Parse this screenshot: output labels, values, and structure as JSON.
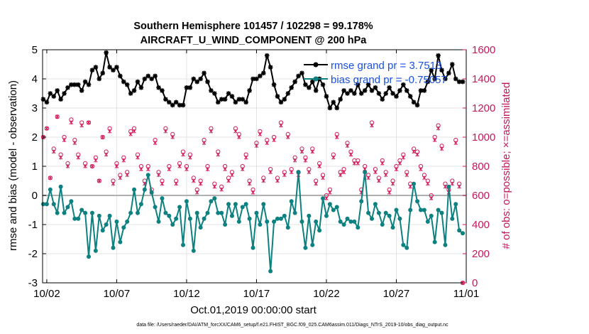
{
  "chart_data": {
    "type": "line",
    "title_line1": "Southern Hemisphere 101457 / 102298 = 99.178%",
    "title_line2": "AIRCRAFT_U_WIND_COMPONENT @ 200 hPa",
    "xlabel": "Oct.01,2019 00:00:00 start",
    "ylabel_left": "rmse and bias (model - observation)",
    "ylabel_right": "# of obs: o=possible; ×=assimilated",
    "footer": "data file: /Users/raeder/DAI/ATM_forcXX/CAM6_setup/f.e21.FHIST_BGC.f09_025.CAM6assim.011/Diags_NTrS_2019-10/obs_diag_output.nc",
    "xlim": [
      0.7,
      31.0
    ],
    "ylim_left": [
      -3,
      5
    ],
    "ylim_right": [
      0,
      1600
    ],
    "x_ticks": [
      1,
      6,
      11,
      16,
      21,
      26,
      31
    ],
    "x_tick_labels": [
      "10/02",
      "10/07",
      "10/12",
      "10/17",
      "10/22",
      "10/27",
      "11/01"
    ],
    "y_left_ticks": [
      "-3",
      "-2",
      "-1",
      "0",
      "1",
      "2",
      "3",
      "4",
      "5"
    ],
    "y_right_ticks": [
      "0",
      "200",
      "400",
      "600",
      "800",
      "1000",
      "1200",
      "1400",
      "1600"
    ],
    "legend": [
      {
        "label": "rmse grand pr = 3.7513",
        "color": "#000000"
      },
      {
        "label": "bias grand pr = -0.75057",
        "color": "#0d8080"
      }
    ],
    "colors": {
      "rmse": "#000000",
      "bias": "#0d8080",
      "obs": "#d11c5b",
      "legend_text": "#1a52e0",
      "right_axis": "#c2185b",
      "zero_line": "#b0b0b0"
    },
    "x": [
      0.75,
      1.0,
      1.25,
      1.5,
      1.75,
      2.0,
      2.25,
      2.5,
      2.75,
      3.0,
      3.25,
      3.5,
      3.75,
      4.0,
      4.25,
      4.5,
      4.75,
      5.0,
      5.25,
      5.5,
      5.75,
      6.0,
      6.25,
      6.5,
      6.75,
      7.0,
      7.25,
      7.5,
      7.75,
      8.0,
      8.25,
      8.5,
      8.75,
      9.0,
      9.25,
      9.5,
      9.75,
      10.0,
      10.25,
      10.5,
      10.75,
      11.0,
      11.25,
      11.5,
      11.75,
      12.0,
      12.25,
      12.5,
      12.75,
      13.0,
      13.25,
      13.5,
      13.75,
      14.0,
      14.25,
      14.5,
      14.75,
      15.0,
      15.25,
      15.5,
      15.75,
      16.0,
      16.25,
      16.5,
      16.75,
      17.0,
      17.25,
      17.5,
      17.75,
      18.0,
      18.25,
      18.5,
      18.75,
      19.0,
      19.25,
      19.5,
      19.75,
      20.0,
      20.25,
      20.5,
      20.75,
      21.0,
      21.25,
      21.5,
      21.75,
      22.0,
      22.25,
      22.5,
      22.75,
      23.0,
      23.25,
      23.5,
      23.75,
      24.0,
      24.25,
      24.5,
      24.75,
      25.0,
      25.25,
      25.5,
      25.75,
      26.0,
      26.25,
      26.5,
      26.75,
      27.0,
      27.25,
      27.5,
      27.75,
      28.0,
      28.25,
      28.5,
      28.75,
      29.0,
      29.25,
      29.5,
      29.75,
      30.0,
      30.25,
      30.5,
      30.75
    ],
    "series": [
      {
        "name": "rmse",
        "values": [
          3.3,
          3.2,
          3.5,
          3.4,
          3.6,
          3.3,
          3.5,
          3.7,
          3.8,
          3.8,
          3.8,
          3.6,
          3.9,
          3.8,
          4.3,
          4.4,
          4.0,
          4.2,
          4.9,
          4.4,
          4.3,
          4.4,
          4.1,
          3.9,
          3.8,
          3.5,
          3.6,
          3.9,
          3.7,
          4.0,
          4.1,
          4.0,
          4.1,
          3.7,
          3.6,
          3.3,
          3.2,
          3.1,
          3.2,
          3.1,
          3.1,
          3.7,
          3.7,
          4.0,
          3.9,
          4.0,
          4.2,
          3.9,
          3.6,
          3.5,
          3.2,
          3.3,
          3.3,
          3.5,
          3.4,
          3.2,
          3.3,
          3.3,
          3.2,
          3.6,
          4.0,
          4.0,
          4.1,
          4.2,
          4.8,
          4.4,
          3.8,
          3.4,
          3.2,
          3.3,
          3.5,
          3.7,
          3.9,
          4.1,
          4.2,
          3.8,
          3.7,
          3.9,
          3.6,
          4.0,
          3.8,
          3.4,
          3.0,
          3.2,
          3.0,
          3.3,
          3.6,
          3.5,
          3.6,
          3.5,
          3.8,
          3.5,
          3.6,
          3.8,
          3.6,
          3.7,
          3.5,
          3.3,
          3.5,
          3.7,
          3.5,
          3.4,
          3.6,
          3.8,
          3.6,
          3.4,
          3.2,
          3.1,
          3.6,
          3.6,
          3.9,
          4.3,
          4.0,
          4.8,
          4.3,
          4.0,
          4.2,
          4.5,
          4.0,
          3.9,
          3.9
        ]
      },
      {
        "name": "bias",
        "values": [
          -0.3,
          -0.3,
          0.2,
          -0.3,
          -0.6,
          0.3,
          -0.6,
          -0.4,
          -0.2,
          -0.8,
          -0.8,
          -0.5,
          -0.6,
          -2.1,
          -0.6,
          -1.9,
          -0.7,
          -1.2,
          -1.0,
          -0.7,
          -1.8,
          -0.9,
          -1.6,
          -1.1,
          -0.9,
          -0.6,
          0.2,
          -0.6,
          -0.3,
          0.2,
          0.7,
          0.1,
          -0.4,
          -0.9,
          -0.1,
          -0.6,
          -0.7,
          -1.0,
          -0.8,
          -0.4,
          -1.7,
          -0.2,
          -0.8,
          -1.9,
          -0.6,
          -1.1,
          -0.8,
          -0.6,
          -0.2,
          -0.1,
          -0.6,
          -0.6,
          -1.0,
          -0.3,
          -0.7,
          -0.3,
          -0.9,
          -0.4,
          -0.3,
          -0.8,
          -1.8,
          -0.6,
          -1.0,
          -0.3,
          -0.9,
          -2.6,
          -0.9,
          -0.8,
          -0.8,
          -0.7,
          -1.1,
          -0.2,
          -0.6,
          0.8,
          -0.9,
          -1.8,
          -0.7,
          -1.7,
          -0.9,
          -1.2,
          -0.1,
          -0.7,
          -0.3,
          -0.5,
          -0.4,
          -0.9,
          -1.0,
          -0.8,
          -0.9,
          -0.9,
          -1.1,
          -0.2,
          0.8,
          -0.6,
          -0.8,
          -0.3,
          -0.6,
          -1.0,
          -0.6,
          -0.7,
          -1.1,
          -0.5,
          -0.8,
          -1.7,
          -1.8,
          -0.5,
          0.4,
          -0.2,
          -0.5,
          -0.5,
          -0.9,
          -0.7,
          -1.6,
          -0.5,
          -0.6,
          -1.7,
          0.3,
          -0.8,
          -0.3,
          -1.2,
          -1.3
        ]
      }
    ],
    "obs_possible": [
      1000,
      1060,
      720,
      920,
      1140,
      880,
      1000,
      820,
      1120,
      980,
      880,
      1100,
      820,
      1100,
      800,
      860,
      700,
      1000,
      900,
      1060,
      700,
      820,
      740,
      860,
      760,
      1040,
      1060,
      880,
      800,
      700,
      800,
      640,
      980,
      760,
      700,
      1060,
      800,
      1020,
      700,
      820,
      900,
      800,
      880,
      720,
      640,
      700,
      980,
      800,
      1060,
      680,
      900,
      660,
      800,
      720,
      760,
      1060,
      1020,
      800,
      880,
      700,
      640,
      960,
      1040,
      720,
      980,
      780,
      1000,
      720,
      1100,
      760,
      1020,
      780,
      860,
      760,
      920,
      860,
      780,
      920,
      700,
      820,
      740,
      600,
      640,
      880,
      1020,
      760,
      780,
      960,
      900,
      840,
      840,
      640,
      800,
      740,
      1100,
      780,
      720,
      840,
      760,
      640,
      700,
      800,
      840,
      880,
      760,
      680,
      920,
      900,
      800,
      740,
      700,
      600,
      1000,
      1080,
      940,
      680,
      640,
      700,
      980,
      680,
      0
    ],
    "obs_assimilated": [
      1000,
      1060,
      720,
      900,
      1140,
      860,
      980,
      800,
      1100,
      960,
      860,
      1080,
      800,
      1100,
      800,
      840,
      700,
      1000,
      880,
      1040,
      680,
      800,
      720,
      840,
      740,
      1020,
      1040,
      860,
      780,
      680,
      780,
      620,
      960,
      740,
      680,
      1040,
      780,
      1000,
      680,
      800,
      880,
      780,
      860,
      700,
      620,
      680,
      960,
      780,
      1040,
      660,
      880,
      640,
      780,
      700,
      740,
      1040,
      1000,
      780,
      860,
      680,
      620,
      940,
      1020,
      700,
      960,
      760,
      980,
      700,
      1080,
      740,
      1000,
      760,
      840,
      740,
      900,
      840,
      760,
      900,
      680,
      800,
      720,
      580,
      620,
      860,
      1000,
      740,
      760,
      940,
      880,
      820,
      820,
      620,
      780,
      720,
      1080,
      760,
      700,
      820,
      740,
      620,
      680,
      780,
      820,
      860,
      740,
      660,
      900,
      880,
      780,
      720,
      680,
      580,
      980,
      1060,
      920,
      660,
      620,
      680,
      960,
      660,
      0
    ]
  }
}
